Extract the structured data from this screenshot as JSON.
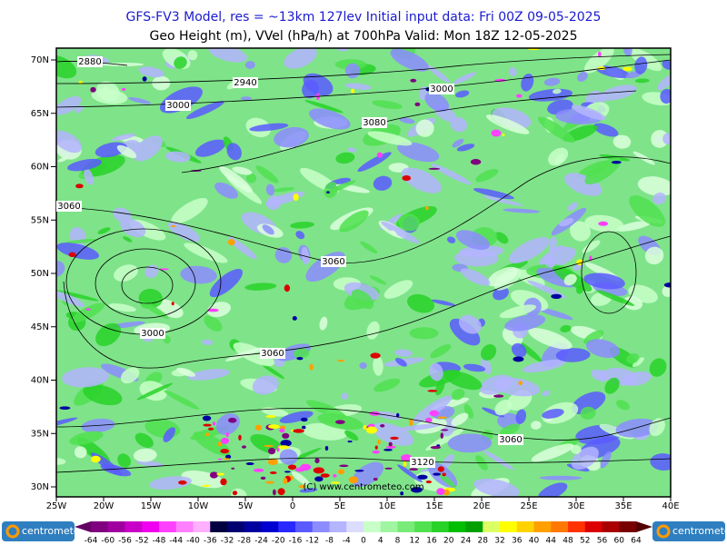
{
  "header": {
    "title": "GFS-FV3 Model, res = ~13km 127lev   Initial input data: Fri 00Z 09-05-2025",
    "subtitle": "Geo Height (m), VVel (hPa/h) at 700hPa  Valid: Mon 18Z 12-05-2025"
  },
  "map": {
    "lat_labels": [
      "70N",
      "65N",
      "60N",
      "55N",
      "50N",
      "45N",
      "40N",
      "35N",
      "30N"
    ],
    "lon_labels": [
      "25W",
      "20W",
      "15W",
      "10W",
      "5W",
      "0",
      "5E",
      "10E",
      "15E",
      "20E",
      "25E",
      "30E",
      "35E",
      "40E"
    ],
    "contour_labels": [
      "2880",
      "2940",
      "3000",
      "3000",
      "3080",
      "3060",
      "3060",
      "3000",
      "3060",
      "3060",
      "3120"
    ],
    "copyright": "(C) www.centrometeo.com"
  },
  "colorbar": {
    "labels": [
      -64,
      -60,
      -56,
      -52,
      -48,
      -44,
      -40,
      -36,
      -32,
      -28,
      -24,
      -20,
      -16,
      -12,
      -8,
      -4,
      0,
      4,
      8,
      12,
      16,
      20,
      24,
      28,
      32,
      36,
      40,
      44,
      48,
      52,
      56,
      60,
      64
    ],
    "colors": [
      "#800080",
      "#a000a0",
      "#c800c8",
      "#f000f0",
      "#ff40ff",
      "#ff80ff",
      "#ffb0ff",
      "#000040",
      "#000070",
      "#0000a0",
      "#0000d0",
      "#2828ff",
      "#5a5aff",
      "#8c8cff",
      "#b4b4ff",
      "#dcdcff",
      "#c8ffc8",
      "#a0f5a0",
      "#78eb78",
      "#50e150",
      "#28d228",
      "#00be00",
      "#00a000",
      "#dcff64",
      "#ffff00",
      "#ffd200",
      "#ffa000",
      "#ff7800",
      "#ff3200",
      "#dc0000",
      "#aa0000",
      "#780000"
    ]
  },
  "logos": [
    "centrometeo",
    "centrometeo"
  ]
}
